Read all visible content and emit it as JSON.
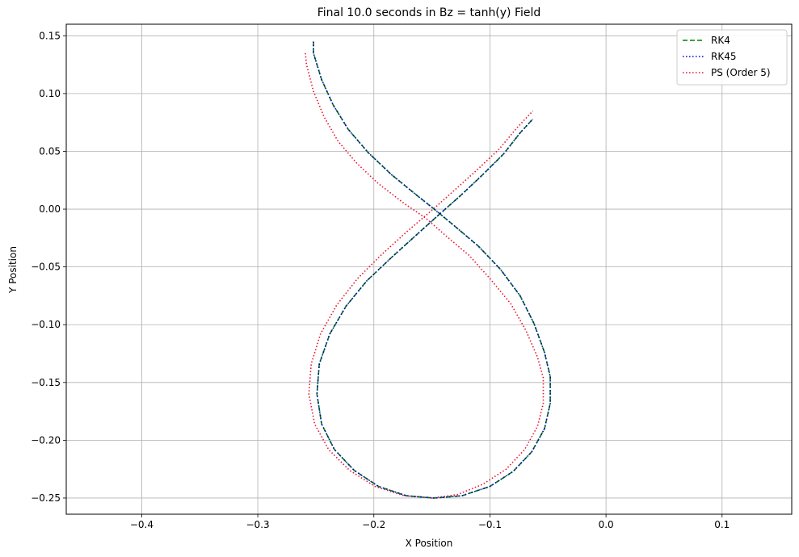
{
  "chart_data": {
    "type": "line",
    "title": "Final 10.0 seconds in Bz = tanh(y) Field",
    "xlabel": "X Position",
    "ylabel": "Y Position",
    "xlim": [
      -0.465,
      0.16
    ],
    "ylim": [
      -0.264,
      0.16
    ],
    "xticks": [
      -0.4,
      -0.3,
      -0.2,
      -0.1,
      0.0,
      0.1
    ],
    "xtick_labels": [
      "−0.4",
      "−0.3",
      "−0.2",
      "−0.1",
      "0.0",
      "0.1"
    ],
    "yticks": [
      0.15,
      0.1,
      0.05,
      0.0,
      -0.05,
      -0.1,
      -0.15,
      -0.2,
      -0.25
    ],
    "ytick_labels": [
      "0.15",
      "0.10",
      "0.05",
      "0.00",
      "−0.05",
      "−0.10",
      "−0.15",
      "−0.20",
      "−0.25"
    ],
    "grid": true,
    "legend_position": "top-right",
    "series": [
      {
        "name": "RK4",
        "color": "#008000",
        "style": "dashed",
        "x": [
          -0.252,
          -0.252,
          -0.245,
          -0.235,
          -0.222,
          -0.205,
          -0.185,
          -0.163,
          -0.148,
          -0.13,
          -0.11,
          -0.091,
          -0.074,
          -0.062,
          -0.053,
          -0.048,
          -0.048,
          -0.053,
          -0.064,
          -0.08,
          -0.1,
          -0.124,
          -0.148,
          -0.172,
          -0.196,
          -0.217,
          -0.234,
          -0.245,
          -0.249,
          -0.247,
          -0.238,
          -0.224,
          -0.206,
          -0.185,
          -0.163,
          -0.143,
          -0.125,
          -0.106,
          -0.088,
          -0.074,
          -0.063
        ],
        "y": [
          0.145,
          0.135,
          0.112,
          0.09,
          0.069,
          0.049,
          0.03,
          0.012,
          0.0,
          -0.015,
          -0.032,
          -0.052,
          -0.075,
          -0.099,
          -0.124,
          -0.145,
          -0.168,
          -0.19,
          -0.21,
          -0.227,
          -0.24,
          -0.248,
          -0.25,
          -0.248,
          -0.24,
          -0.226,
          -0.208,
          -0.186,
          -0.16,
          -0.134,
          -0.108,
          -0.084,
          -0.062,
          -0.042,
          -0.022,
          -0.004,
          0.012,
          0.03,
          0.048,
          0.066,
          0.078
        ]
      },
      {
        "name": "RK45",
        "color": "#0000cd",
        "style": "dotted",
        "x": [
          -0.252,
          -0.252,
          -0.245,
          -0.235,
          -0.222,
          -0.205,
          -0.185,
          -0.163,
          -0.148,
          -0.13,
          -0.11,
          -0.091,
          -0.074,
          -0.062,
          -0.053,
          -0.048,
          -0.048,
          -0.053,
          -0.064,
          -0.08,
          -0.1,
          -0.124,
          -0.148,
          -0.172,
          -0.196,
          -0.217,
          -0.234,
          -0.245,
          -0.249,
          -0.247,
          -0.238,
          -0.224,
          -0.206,
          -0.185,
          -0.163,
          -0.143,
          -0.125,
          -0.106,
          -0.088,
          -0.074,
          -0.063
        ],
        "y": [
          0.145,
          0.135,
          0.112,
          0.09,
          0.069,
          0.049,
          0.03,
          0.012,
          0.0,
          -0.015,
          -0.032,
          -0.052,
          -0.075,
          -0.099,
          -0.124,
          -0.145,
          -0.168,
          -0.19,
          -0.21,
          -0.227,
          -0.24,
          -0.248,
          -0.25,
          -0.248,
          -0.24,
          -0.226,
          -0.208,
          -0.186,
          -0.16,
          -0.134,
          -0.108,
          -0.084,
          -0.062,
          -0.042,
          -0.022,
          -0.004,
          0.012,
          0.03,
          0.048,
          0.066,
          0.078
        ]
      },
      {
        "name": "PS (Order 5)",
        "color": "#e8112d",
        "style": "dotted",
        "x": [
          -0.259,
          -0.258,
          -0.252,
          -0.243,
          -0.231,
          -0.215,
          -0.196,
          -0.174,
          -0.155,
          -0.138,
          -0.118,
          -0.1,
          -0.082,
          -0.069,
          -0.059,
          -0.054,
          -0.054,
          -0.059,
          -0.07,
          -0.086,
          -0.106,
          -0.128,
          -0.15,
          -0.174,
          -0.199,
          -0.221,
          -0.239,
          -0.251,
          -0.256,
          -0.254,
          -0.246,
          -0.232,
          -0.214,
          -0.193,
          -0.171,
          -0.15,
          -0.131,
          -0.111,
          -0.092,
          -0.077,
          -0.063
        ],
        "y": [
          0.135,
          0.125,
          0.102,
          0.08,
          0.059,
          0.04,
          0.022,
          0.005,
          -0.008,
          -0.023,
          -0.04,
          -0.06,
          -0.082,
          -0.105,
          -0.128,
          -0.146,
          -0.168,
          -0.188,
          -0.208,
          -0.225,
          -0.238,
          -0.247,
          -0.25,
          -0.248,
          -0.24,
          -0.226,
          -0.208,
          -0.186,
          -0.16,
          -0.134,
          -0.108,
          -0.083,
          -0.06,
          -0.039,
          -0.019,
          -0.001,
          0.016,
          0.034,
          0.052,
          0.07,
          0.085
        ]
      }
    ]
  }
}
